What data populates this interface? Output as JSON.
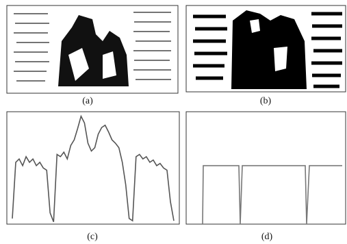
{
  "panels": {
    "a": {
      "label": "(a)"
    },
    "b": {
      "label": "(b)"
    },
    "c": {
      "label": "(c)",
      "type": "line",
      "color": "#555555",
      "ylim": [
        0,
        100
      ],
      "values": [
        5,
        55,
        58,
        52,
        60,
        55,
        58,
        52,
        55,
        50,
        48,
        10,
        2,
        62,
        60,
        64,
        58,
        70,
        75,
        85,
        96,
        90,
        72,
        65,
        68,
        80,
        86,
        88,
        82,
        75,
        72,
        68,
        55,
        35,
        5,
        3,
        60,
        62,
        58,
        60,
        55,
        57,
        52,
        54,
        50,
        48,
        20,
        3
      ]
    },
    "d": {
      "label": "(d)",
      "type": "line",
      "color": "#777777",
      "ylim": [
        0,
        100
      ],
      "xlim": [
        0,
        233
      ],
      "x": [
        22,
        24,
        25,
        77,
        79,
        82,
        174,
        176,
        180,
        228
      ],
      "values": [
        0,
        0,
        52,
        52,
        0,
        52,
        52,
        0,
        52,
        52
      ]
    }
  }
}
